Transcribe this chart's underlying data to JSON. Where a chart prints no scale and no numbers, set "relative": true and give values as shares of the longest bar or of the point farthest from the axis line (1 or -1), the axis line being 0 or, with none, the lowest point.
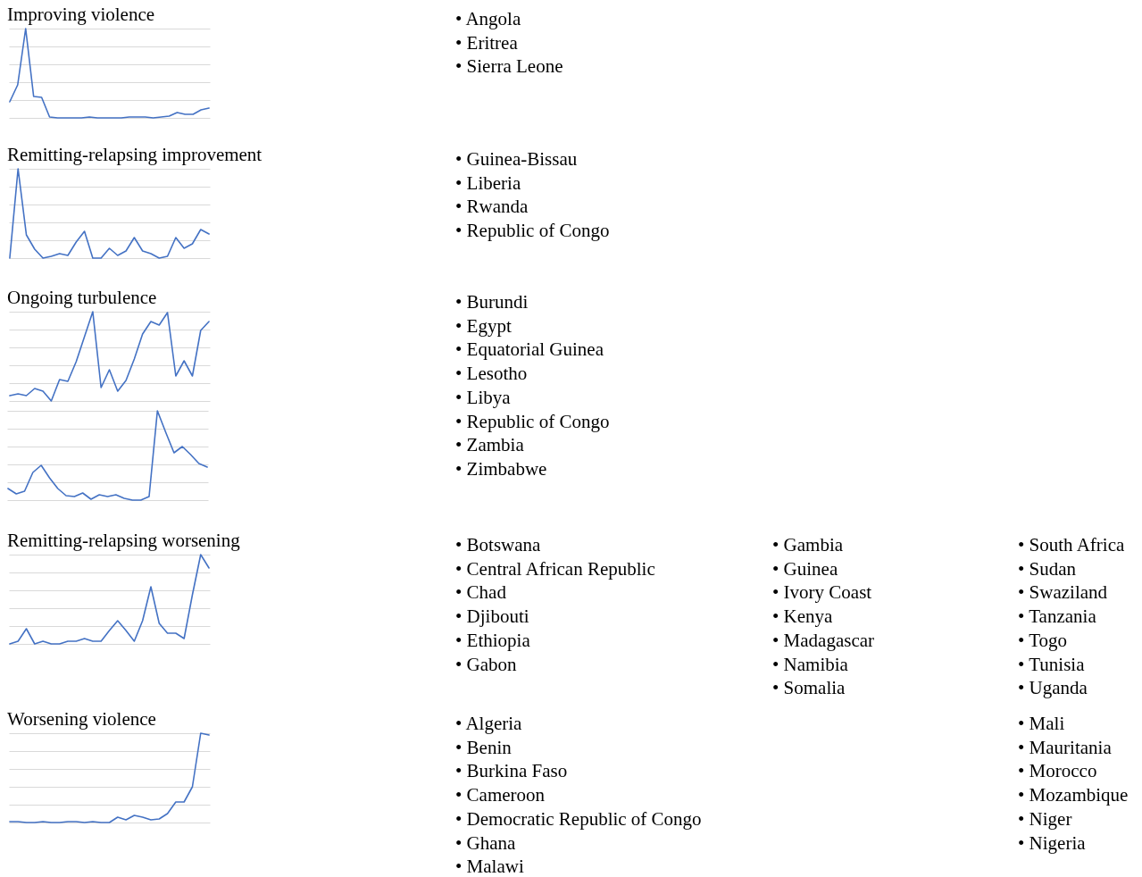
{
  "chart_data": [
    {
      "type": "line",
      "title": "Improving violence",
      "relative": true,
      "grid": "y",
      "tick_labels": false,
      "color": "#4472c4",
      "categories": [
        null,
        null,
        null,
        null,
        null,
        null,
        null,
        null,
        null,
        null,
        null,
        null,
        null,
        null,
        null,
        null,
        null,
        null,
        null,
        null,
        null,
        null,
        null,
        null,
        null,
        null
      ],
      "values": [
        0.18,
        0.37,
        1,
        0.24,
        0.23,
        0.01,
        0,
        0,
        0,
        0,
        0.01,
        0,
        0,
        0,
        0,
        0.01,
        0.01,
        0.01,
        0,
        0.01,
        0.02,
        0.06,
        0.04,
        0.04,
        0.09,
        0.11
      ]
    },
    {
      "type": "other",
      "annotations": [
        "• Angola",
        "• Eritrea",
        "• Sierra Leone"
      ]
    },
    {
      "type": "line",
      "title": "Remitting-relapsing improvement",
      "relative": true,
      "grid": "y",
      "tick_labels": false,
      "color": "#4472c4",
      "categories": [
        null,
        null,
        null,
        null,
        null,
        null,
        null,
        null,
        null,
        null,
        null,
        null,
        null,
        null,
        null,
        null,
        null,
        null,
        null,
        null,
        null,
        null,
        null,
        null,
        null
      ],
      "values": [
        0,
        1,
        0.26,
        0.1,
        0,
        0.02,
        0.05,
        0.03,
        0.18,
        0.3,
        0,
        0,
        0.11,
        0.03,
        0.08,
        0.23,
        0.08,
        0.05,
        0,
        0.02,
        0.23,
        0.11,
        0.16,
        0.32,
        0.27
      ]
    },
    {
      "type": "other",
      "annotations": [
        "• Guinea-Bissau",
        "• Liberia",
        "• Rwanda",
        "• Republic of Congo"
      ]
    },
    {
      "type": "line",
      "title": "Ongoing turbulence",
      "relative": true,
      "grid": "y",
      "tick_labels": false,
      "color": "#4472c4",
      "categories": [
        null,
        null,
        null,
        null,
        null,
        null,
        null,
        null,
        null,
        null,
        null,
        null,
        null,
        null,
        null,
        null,
        null,
        null,
        null,
        null,
        null,
        null,
        null,
        null,
        null
      ],
      "values": [
        0.06,
        0.08,
        0.06,
        0.14,
        0.11,
        0,
        0.24,
        0.22,
        0.44,
        0.72,
        1,
        0.15,
        0.35,
        0.11,
        0.23,
        0.47,
        0.75,
        0.89,
        0.85,
        0.99,
        0.28,
        0.45,
        0.28,
        0.79,
        0.89
      ]
    },
    {
      "type": "line",
      "relative": true,
      "grid": "y",
      "tick_labels": false,
      "color": "#4472c4",
      "categories": [
        null,
        null,
        null,
        null,
        null,
        null,
        null,
        null,
        null,
        null,
        null,
        null,
        null,
        null,
        null,
        null,
        null,
        null,
        null,
        null,
        null,
        null,
        null,
        null,
        null
      ],
      "values": [
        0.13,
        0.07,
        0.1,
        0.31,
        0.39,
        0.25,
        0.13,
        0.05,
        0.04,
        0.08,
        0.01,
        0.06,
        0.04,
        0.06,
        0.02,
        0,
        0,
        0.04,
        1,
        0.76,
        0.53,
        0.6,
        0.51,
        0.41,
        0.37
      ]
    },
    {
      "type": "other",
      "annotations": [
        "• Burundi",
        "• Egypt",
        "• Equatorial Guinea",
        "• Lesotho",
        "• Libya",
        "• Republic of Congo",
        "• Zambia",
        "• Zimbabwe"
      ]
    },
    {
      "type": "line",
      "title": "Remitting-relapsing worsening",
      "relative": true,
      "grid": "y",
      "tick_labels": false,
      "color": "#4472c4",
      "categories": [
        null,
        null,
        null,
        null,
        null,
        null,
        null,
        null,
        null,
        null,
        null,
        null,
        null,
        null,
        null,
        null,
        null,
        null,
        null,
        null,
        null,
        null,
        null,
        null,
        null
      ],
      "values": [
        0,
        0.03,
        0.17,
        0,
        0.03,
        0,
        0,
        0.03,
        0.03,
        0.06,
        0.03,
        0.03,
        0.15,
        0.26,
        0.15,
        0.03,
        0.26,
        0.64,
        0.23,
        0.12,
        0.12,
        0.06,
        0.55,
        1,
        0.85
      ]
    },
    {
      "type": "other",
      "annotations": [
        "• Botswana",
        "• Central African Republic",
        "• Chad",
        "• Djibouti",
        "• Ethiopia",
        "• Gabon"
      ]
    },
    {
      "type": "other",
      "annotations": [
        "• Gambia",
        "• Guinea",
        "• Ivory Coast",
        "• Kenya",
        "• Madagascar",
        "• Namibia",
        "• Somalia"
      ]
    },
    {
      "type": "other",
      "annotations": [
        "• South Africa",
        "• Sudan",
        "• Swaziland",
        "• Tanzania",
        "• Togo",
        "• Tunisia",
        "• Uganda"
      ]
    },
    {
      "type": "line",
      "title": "Worsening violence",
      "relative": true,
      "grid": "y",
      "tick_labels": false,
      "color": "#4472c4",
      "categories": [
        null,
        null,
        null,
        null,
        null,
        null,
        null,
        null,
        null,
        null,
        null,
        null,
        null,
        null,
        null,
        null,
        null,
        null,
        null,
        null,
        null,
        null,
        null,
        null,
        null
      ],
      "values": [
        0.01,
        0.01,
        0,
        0,
        0.01,
        0,
        0,
        0.01,
        0.01,
        0,
        0.01,
        0,
        0,
        0.06,
        0.03,
        0.08,
        0.06,
        0.03,
        0.04,
        0.1,
        0.23,
        0.23,
        0.4,
        1,
        0.98
      ]
    },
    {
      "type": "other",
      "annotations": [
        "• Algeria",
        "• Benin",
        "• Burkina Faso",
        "• Cameroon",
        "• Democratic Republic of Congo",
        "• Ghana",
        "• Malawi"
      ]
    },
    {
      "type": "other",
      "annotations": [
        "• Mali",
        "• Mauritania",
        "• Morocco",
        "• Mozambique",
        "• Niger",
        "• Nigeria"
      ]
    }
  ]
}
